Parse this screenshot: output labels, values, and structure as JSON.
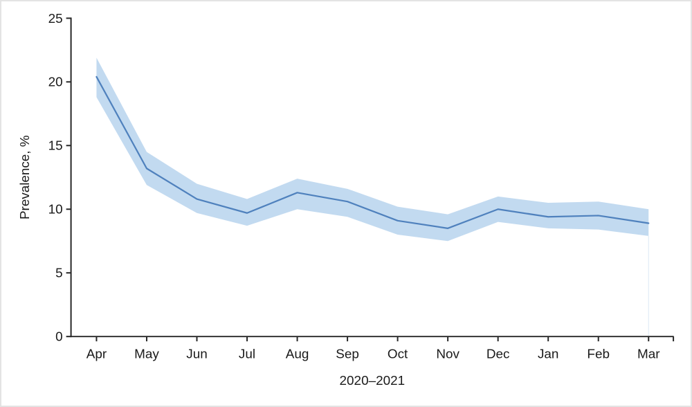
{
  "figure": {
    "background": "#ffffff",
    "border_color": "#e3e3e3"
  },
  "chart_data": {
    "type": "line",
    "title": "",
    "xlabel": "2020–2021",
    "ylabel": "Prevalence, %",
    "categories": [
      "Apr",
      "May",
      "Jun",
      "Jul",
      "Aug",
      "Sep",
      "Oct",
      "Nov",
      "Dec",
      "Jan",
      "Feb",
      "Mar"
    ],
    "series": [
      {
        "name": "Prevalence",
        "values": [
          20.4,
          13.2,
          10.8,
          9.7,
          11.3,
          10.6,
          9.1,
          8.5,
          10.0,
          9.4,
          9.5,
          8.9
        ]
      }
    ],
    "ci_upper": [
      21.9,
      14.5,
      12.0,
      10.8,
      12.4,
      11.6,
      10.2,
      9.6,
      11.0,
      10.5,
      10.6,
      10.0
    ],
    "ci_lower": [
      18.8,
      11.9,
      9.7,
      8.7,
      10.0,
      9.4,
      8.0,
      7.5,
      9.0,
      8.5,
      8.4,
      7.9
    ],
    "ylim": [
      0,
      25
    ],
    "yticks": [
      0,
      5,
      10,
      15,
      20,
      25
    ],
    "grid": false,
    "legend_position": "none",
    "line_color": "#4F81BD",
    "band_color": "#BFD8EF",
    "band_edge_color": "#dce8f4",
    "axis_color": "#262626",
    "text_color": "#1a1a1a"
  }
}
